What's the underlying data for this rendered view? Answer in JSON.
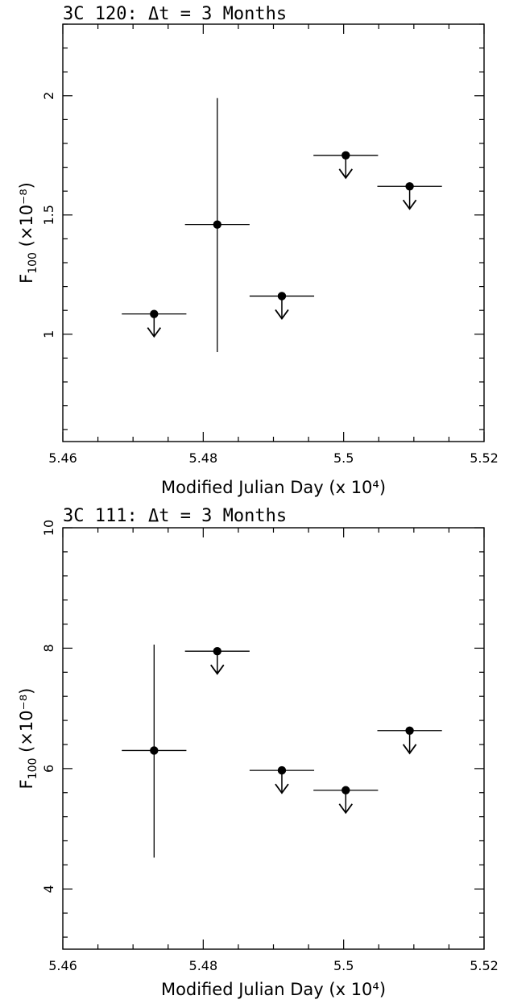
{
  "chart_data": [
    {
      "type": "scatter",
      "title": "3C 120: Δt = 3 Months",
      "xlabel": "Modified Julian Day (x 10⁴)",
      "ylabel_main": "F",
      "ylabel_sub": "100",
      "ylabel_tail": " (×10⁻⁸)",
      "xlim": [
        5.46,
        5.52
      ],
      "ylim": [
        0.55,
        2.3
      ],
      "xticks": [
        5.46,
        5.48,
        5.5,
        5.52
      ],
      "xtick_labels": [
        "5.46",
        "5.48",
        "5.5",
        "5.52"
      ],
      "yticks": [
        1,
        1.5,
        2
      ],
      "ytick_labels": [
        "1",
        "1.5",
        "2"
      ],
      "grid": false,
      "points": [
        {
          "x": 5.473,
          "xerr": 0.0046,
          "y": 1.085,
          "upper_limit": true
        },
        {
          "x": 5.482,
          "xerr": 0.0046,
          "y": 1.46,
          "yerr_low": 0.535,
          "yerr_high": 0.53,
          "upper_limit": false
        },
        {
          "x": 5.4912,
          "xerr": 0.0046,
          "y": 1.16,
          "upper_limit": true
        },
        {
          "x": 5.5003,
          "xerr": 0.0046,
          "y": 1.75,
          "upper_limit": true
        },
        {
          "x": 5.5094,
          "xerr": 0.0046,
          "y": 1.62,
          "upper_limit": true
        }
      ]
    },
    {
      "type": "scatter",
      "title": "3C 111: Δt = 3 Months",
      "xlabel": "Modified Julian Day (x 10⁴)",
      "ylabel_main": "F",
      "ylabel_sub": "100",
      "ylabel_tail": " (×10⁻⁸)",
      "xlim": [
        5.46,
        5.52
      ],
      "ylim": [
        3,
        10
      ],
      "xticks": [
        5.46,
        5.48,
        5.5,
        5.52
      ],
      "xtick_labels": [
        "5.46",
        "5.48",
        "5.5",
        "5.52"
      ],
      "yticks": [
        4,
        6,
        8,
        10
      ],
      "ytick_labels": [
        "4",
        "6",
        "8",
        "10"
      ],
      "grid": false,
      "points": [
        {
          "x": 5.473,
          "xerr": 0.0046,
          "y": 6.3,
          "yerr_low": 1.78,
          "yerr_high": 1.76,
          "upper_limit": false
        },
        {
          "x": 5.482,
          "xerr": 0.0046,
          "y": 7.95,
          "upper_limit": true
        },
        {
          "x": 5.4912,
          "xerr": 0.0046,
          "y": 5.97,
          "upper_limit": true
        },
        {
          "x": 5.5003,
          "xerr": 0.0046,
          "y": 5.64,
          "upper_limit": true
        },
        {
          "x": 5.5094,
          "xerr": 0.0046,
          "y": 6.63,
          "upper_limit": true
        }
      ]
    }
  ]
}
